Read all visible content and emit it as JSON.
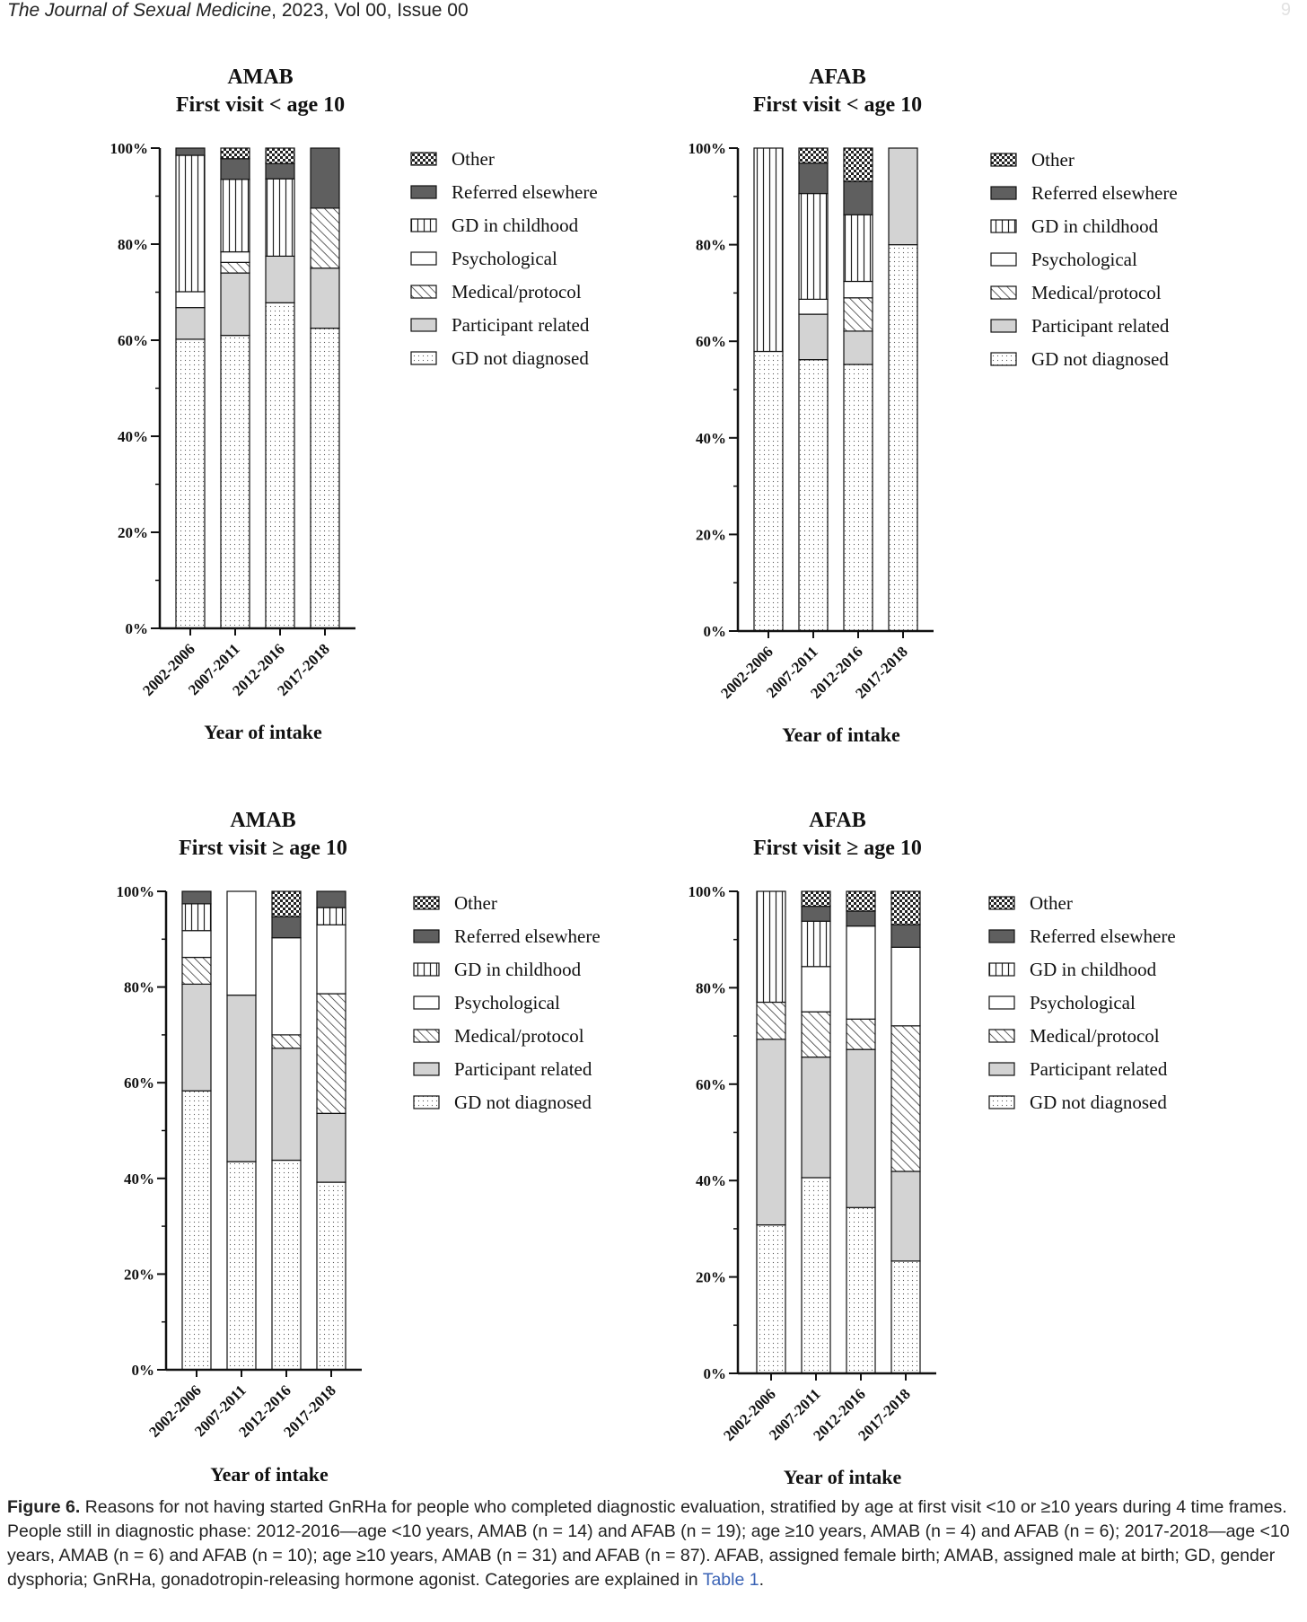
{
  "header": {
    "journal": "The Journal of Sexual Medicine",
    "details": ", 2023, Vol 00, Issue 00",
    "page_number": "9"
  },
  "legend_labels": [
    "Other",
    "Referred elsewhere",
    "GD in childhood",
    "Psychological",
    "Medical/protocol",
    "Participant related",
    "GD not diagnosed"
  ],
  "chart_data": [
    {
      "type": "bar",
      "stacked": true,
      "title": "AMAB",
      "subtitle": "First visit < age 10",
      "xlabel": "Year of intake",
      "ylabel": "",
      "categories": [
        "2002-2006",
        "2007-2011",
        "2012-2016",
        "2017-2018"
      ],
      "yticks": [
        "0%",
        "20%",
        "40%",
        "60%",
        "80%",
        "100%"
      ],
      "ylim": [
        0,
        100
      ],
      "legend_position": "right",
      "series": [
        {
          "name": "GD not diagnosed",
          "values": [
            60.2,
            61.0,
            67.8,
            62.5
          ]
        },
        {
          "name": "Participant related",
          "values": [
            6.6,
            13.0,
            9.7,
            12.5
          ]
        },
        {
          "name": "Medical/protocol",
          "values": [
            0,
            2.2,
            0,
            12.5
          ]
        },
        {
          "name": "Psychological",
          "values": [
            3.3,
            2.2,
            0,
            0
          ]
        },
        {
          "name": "GD in childhood",
          "values": [
            28.4,
            15.1,
            16.1,
            0
          ]
        },
        {
          "name": "Referred elsewhere",
          "values": [
            1.5,
            4.3,
            3.2,
            12.5
          ]
        },
        {
          "name": "Other",
          "values": [
            0,
            2.2,
            3.2,
            0
          ]
        }
      ]
    },
    {
      "type": "bar",
      "stacked": true,
      "title": "AFAB",
      "subtitle": "First visit < age 10",
      "xlabel": "Year of intake",
      "ylabel": "",
      "categories": [
        "2002-2006",
        "2007-2011",
        "2012-2016",
        "2017-2018"
      ],
      "yticks": [
        "0%",
        "20%",
        "40%",
        "60%",
        "80%",
        "100%"
      ],
      "ylim": [
        0,
        100
      ],
      "legend_position": "right",
      "series": [
        {
          "name": "GD not diagnosed",
          "values": [
            57.9,
            56.2,
            55.2,
            80.0
          ]
        },
        {
          "name": "Participant related",
          "values": [
            0,
            9.4,
            6.9,
            20.0
          ]
        },
        {
          "name": "Medical/protocol",
          "values": [
            0,
            0,
            6.9,
            0
          ]
        },
        {
          "name": "Psychological",
          "values": [
            0,
            3.1,
            3.4,
            0
          ]
        },
        {
          "name": "GD in childhood",
          "values": [
            42.1,
            21.9,
            13.8,
            0
          ]
        },
        {
          "name": "Referred elsewhere",
          "values": [
            0,
            6.3,
            6.9,
            0
          ]
        },
        {
          "name": "Other",
          "values": [
            0,
            3.1,
            6.9,
            0
          ]
        }
      ]
    },
    {
      "type": "bar",
      "stacked": true,
      "title": "AMAB",
      "subtitle": "First visit ≥ age 10",
      "xlabel": "Year of intake",
      "ylabel": "",
      "categories": [
        "2002-2006",
        "2007-2011",
        "2012-2016",
        "2017-2018"
      ],
      "yticks": [
        "0%",
        "20%",
        "40%",
        "60%",
        "80%",
        "100%"
      ],
      "ylim": [
        0,
        100
      ],
      "legend_position": "right",
      "series": [
        {
          "name": "GD not diagnosed",
          "values": [
            58.3,
            43.5,
            43.8,
            39.2
          ]
        },
        {
          "name": "Participant related",
          "values": [
            22.3,
            34.8,
            23.4,
            14.4
          ]
        },
        {
          "name": "Medical/protocol",
          "values": [
            5.6,
            0,
            2.8,
            25.0
          ]
        },
        {
          "name": "Psychological",
          "values": [
            5.6,
            21.7,
            20.3,
            14.4
          ]
        },
        {
          "name": "GD in childhood",
          "values": [
            5.6,
            0,
            0,
            3.6
          ]
        },
        {
          "name": "Referred elsewhere",
          "values": [
            2.6,
            0,
            4.4,
            3.4
          ]
        },
        {
          "name": "Other",
          "values": [
            0,
            0,
            5.3,
            0
          ]
        }
      ]
    },
    {
      "type": "bar",
      "stacked": true,
      "title": "AFAB",
      "subtitle": "First visit ≥ age 10",
      "xlabel": "Year of intake",
      "ylabel": "",
      "categories": [
        "2002-2006",
        "2007-2011",
        "2012-2016",
        "2017-2018"
      ],
      "yticks": [
        "0%",
        "20%",
        "40%",
        "60%",
        "80%",
        "100%"
      ],
      "ylim": [
        0,
        100
      ],
      "legend_position": "right",
      "series": [
        {
          "name": "GD not diagnosed",
          "values": [
            30.8,
            40.6,
            34.4,
            23.3
          ]
        },
        {
          "name": "Participant related",
          "values": [
            38.5,
            25.0,
            32.8,
            18.6
          ]
        },
        {
          "name": "Medical/protocol",
          "values": [
            7.7,
            9.4,
            6.3,
            30.2
          ]
        },
        {
          "name": "Psychological",
          "values": [
            0,
            9.4,
            19.3,
            16.3
          ]
        },
        {
          "name": "GD in childhood",
          "values": [
            23.0,
            9.4,
            0,
            0
          ]
        },
        {
          "name": "Referred elsewhere",
          "values": [
            0,
            3.1,
            3.1,
            4.7
          ]
        },
        {
          "name": "Other",
          "values": [
            0,
            3.1,
            4.1,
            6.9
          ]
        }
      ]
    }
  ],
  "caption": {
    "label": "Figure 6.",
    "text": " Reasons for not having started GnRHa for people who completed diagnostic evaluation, stratified by age at first visit <10 or ≥10 years during 4 time frames. People still in diagnostic phase: 2012-2016—age <10 years, AMAB (n = 14) and AFAB (n = 19); age ≥10 years, AMAB (n = 4) and AFAB (n = 6); 2017-2018—age <10 years, AMAB (n = 6) and AFAB (n = 10); age ≥10 years, AMAB (n = 31) and AFAB (n = 87). AFAB, assigned female birth; AMAB, assigned male at birth; GD, gender dysphoria; GnRHa, gonadotropin-releasing hormone agonist. Categories are explained in ",
    "link": "Table 1",
    "end": "."
  }
}
